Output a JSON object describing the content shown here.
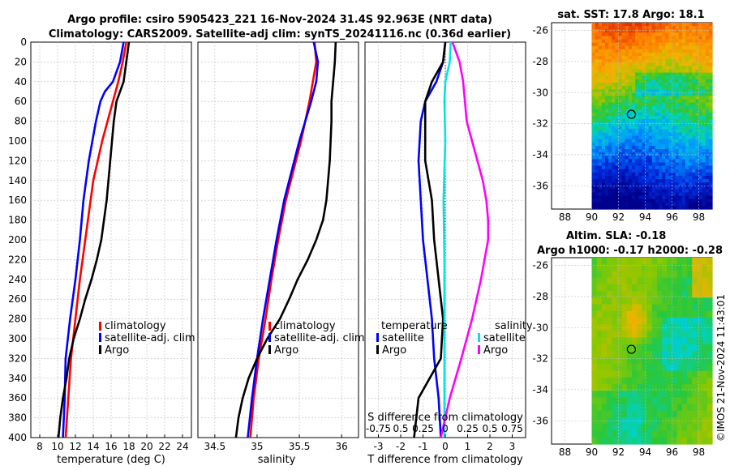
{
  "title_line1": "Argo profile: csiro 5905423_221 16-Nov-2024 31.4S 92.963E (NRT data)",
  "title_line2": "Climatology: CARS2009. Satellite-adj clim: synTS_20241116.nc (0.36d earlier)",
  "credit": "©IMOS 21-Nov-2024 11:43:01",
  "colors": {
    "climatology": "#ff0000",
    "satellite": "#0000ff",
    "argo": "#000000",
    "sat_t": "#00e5e5",
    "argo_s": "#ff00ff"
  },
  "chart_data": [
    {
      "type": "line",
      "id": "temperature",
      "xlabel": "temperature (deg C)",
      "ylabel": "depth",
      "xlim": [
        7,
        25
      ],
      "ylim": [
        400,
        0
      ],
      "xticks": [
        "8",
        "10",
        "12",
        "14",
        "16",
        "18",
        "20",
        "22",
        "24"
      ],
      "yticks": [
        "0",
        "20",
        "40",
        "60",
        "80",
        "100",
        "120",
        "140",
        "160",
        "180",
        "200",
        "220",
        "240",
        "260",
        "280",
        "300",
        "320",
        "340",
        "360",
        "380",
        "400"
      ],
      "legend": [
        "climatology",
        "satellite-adj. clim",
        "Argo"
      ],
      "series": [
        {
          "name": "climatology",
          "depth": [
            0,
            20,
            40,
            60,
            80,
            100,
            120,
            140,
            160,
            180,
            200,
            240,
            280,
            320,
            360,
            400
          ],
          "values": [
            17.7,
            17.3,
            16.8,
            16.2,
            15.6,
            15.0,
            14.5,
            14.0,
            13.7,
            13.4,
            13.1,
            12.5,
            12.0,
            11.5,
            11.2,
            10.9
          ]
        },
        {
          "name": "satellite-adj. clim",
          "depth": [
            0,
            20,
            40,
            50,
            60,
            80,
            100,
            120,
            140,
            160,
            180,
            200,
            240,
            280,
            320,
            360,
            400
          ],
          "values": [
            17.4,
            17.0,
            16.2,
            15.3,
            14.8,
            14.3,
            13.9,
            13.5,
            13.2,
            12.9,
            12.7,
            12.5,
            12.0,
            11.4,
            10.9,
            10.8,
            10.6
          ]
        },
        {
          "name": "Argo",
          "depth": [
            0,
            20,
            40,
            60,
            80,
            100,
            120,
            140,
            160,
            180,
            200,
            220,
            240,
            260,
            280,
            300,
            320,
            340,
            360,
            380,
            400
          ],
          "values": [
            18.0,
            17.7,
            17.4,
            16.6,
            16.3,
            16.1,
            15.9,
            15.7,
            15.5,
            15.2,
            14.9,
            14.4,
            13.8,
            13.1,
            12.5,
            11.8,
            11.3,
            11.0,
            10.6,
            10.3,
            10.1
          ]
        }
      ]
    },
    {
      "type": "line",
      "id": "salinity",
      "xlabel": "salinity",
      "xlim": [
        34.3,
        36.2
      ],
      "ylim": [
        400,
        0
      ],
      "xticks": [
        "34.5",
        "35",
        "35.5",
        "36"
      ],
      "legend": [
        "climatology",
        "satellite-adj. clim",
        "Argo"
      ],
      "series": [
        {
          "name": "climatology",
          "depth": [
            0,
            20,
            40,
            60,
            80,
            100,
            120,
            140,
            160,
            200,
            240,
            280,
            320,
            360,
            400
          ],
          "values": [
            35.68,
            35.7,
            35.66,
            35.62,
            35.57,
            35.52,
            35.46,
            35.4,
            35.34,
            35.25,
            35.17,
            35.1,
            35.02,
            34.96,
            34.92
          ]
        },
        {
          "name": "satellite-adj. clim",
          "depth": [
            0,
            20,
            40,
            60,
            80,
            100,
            120,
            140,
            160,
            200,
            240,
            280,
            320,
            360,
            400
          ],
          "values": [
            35.67,
            35.72,
            35.7,
            35.64,
            35.57,
            35.5,
            35.44,
            35.38,
            35.32,
            35.23,
            35.15,
            35.07,
            35.0,
            34.94,
            34.89
          ]
        },
        {
          "name": "Argo",
          "depth": [
            0,
            20,
            40,
            60,
            80,
            100,
            120,
            140,
            160,
            180,
            200,
            220,
            240,
            260,
            280,
            300,
            320,
            340,
            360,
            380,
            400
          ],
          "values": [
            35.93,
            35.92,
            35.9,
            35.88,
            35.88,
            35.87,
            35.86,
            35.84,
            35.82,
            35.78,
            35.7,
            35.6,
            35.48,
            35.38,
            35.27,
            35.12,
            35.0,
            34.9,
            34.83,
            34.78,
            34.75
          ]
        }
      ]
    },
    {
      "type": "line",
      "id": "difference",
      "xlabel": "T difference from climatology",
      "xlim": [
        -3.6,
        3.6
      ],
      "ylim": [
        400,
        0
      ],
      "xticks": [
        "-3",
        "-2",
        "-1",
        "0",
        "1",
        "2",
        "3"
      ],
      "top_label": "S difference from climatology",
      "top_ticks": [
        "-0.75",
        "0.5",
        "0.25",
        "0",
        "0.25",
        "0.5",
        "0.75"
      ],
      "legend_left_title": "temperature",
      "legend_right_title": "salinity",
      "legend": [
        "satellite",
        "Argo",
        "satellite",
        "Argo"
      ],
      "series": [
        {
          "name": "T satellite",
          "depth": [
            0,
            20,
            40,
            60,
            80,
            120,
            160,
            200,
            240,
            280,
            320,
            360,
            400
          ],
          "values": [
            0.0,
            -0.1,
            -0.4,
            -0.9,
            -1.1,
            -1.2,
            -1.1,
            -1.0,
            -0.8,
            -0.6,
            -0.5,
            -0.3,
            -0.2
          ]
        },
        {
          "name": "T Argo",
          "depth": [
            0,
            20,
            40,
            60,
            80,
            120,
            160,
            200,
            240,
            280,
            320,
            340,
            360,
            380,
            400
          ],
          "values": [
            0.0,
            -0.1,
            -0.6,
            -0.9,
            -0.9,
            -0.9,
            -0.6,
            -0.5,
            -0.3,
            -0.1,
            -0.2,
            -0.7,
            -1.2,
            -1.3,
            -1.4
          ]
        },
        {
          "name": "S satellite",
          "depth": [
            0,
            20,
            40,
            60,
            100,
            160,
            220,
            280,
            340,
            400
          ],
          "values": [
            0.06,
            0.05,
            0.0,
            -0.01,
            0.0,
            -0.02,
            -0.01,
            -0.01,
            -0.01,
            -0.01
          ]
        },
        {
          "name": "S Argo",
          "depth": [
            0,
            20,
            40,
            60,
            80,
            100,
            120,
            140,
            160,
            180,
            200,
            240,
            280,
            320,
            360,
            400
          ],
          "values": [
            0.08,
            0.16,
            0.2,
            0.22,
            0.24,
            0.3,
            0.36,
            0.42,
            0.46,
            0.48,
            0.48,
            0.4,
            0.3,
            0.18,
            0.05,
            -0.05
          ]
        }
      ]
    },
    {
      "type": "heatmap",
      "id": "sst_map",
      "title": "sat. SST: 17.8 Argo: 18.1",
      "xticks": [
        "88",
        "90",
        "92",
        "94",
        "96",
        "98"
      ],
      "yticks": [
        "-26",
        "-28",
        "-30",
        "-32",
        "-34",
        "-36"
      ],
      "xlim": [
        87,
        99
      ],
      "ylim": [
        -37.5,
        -25.5
      ],
      "marker": [
        92.963,
        -31.4
      ]
    },
    {
      "type": "heatmap",
      "id": "sla_map",
      "title_line1": "Altim. SLA: -0.18",
      "title_line2": "Argo h1000: -0.17 h2000: -0.28",
      "xticks": [
        "88",
        "90",
        "92",
        "94",
        "96",
        "98"
      ],
      "yticks": [
        "-26",
        "-28",
        "-30",
        "-32",
        "-34",
        "-36"
      ],
      "xlim": [
        87,
        99
      ],
      "ylim": [
        -37.5,
        -25.5
      ],
      "marker": [
        92.963,
        -31.4
      ]
    }
  ]
}
